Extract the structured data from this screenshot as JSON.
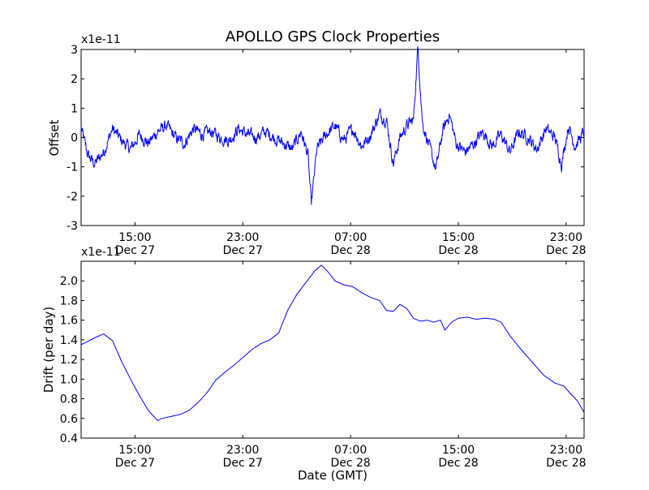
{
  "title": "APOLLO GPS Clock Properties",
  "colors": {
    "series": "#0000ff",
    "axes": "#000000",
    "background": "#ffffff"
  },
  "x_ticks": [
    {
      "value": "2012-12-27 15:00",
      "time": "15:00",
      "date": "Dec 27"
    },
    {
      "value": "2012-12-27 23:00",
      "time": "23:00",
      "date": "Dec 27"
    },
    {
      "value": "2012-12-28 07:00",
      "time": "07:00",
      "date": "Dec 28"
    },
    {
      "value": "2012-12-28 15:00",
      "time": "15:00",
      "date": "Dec 28"
    },
    {
      "value": "2012-12-28 23:00",
      "time": "23:00",
      "date": "Dec 28"
    }
  ],
  "chart_data": [
    {
      "type": "line",
      "ylabel": "Offset",
      "scale_label": "x1e-11",
      "ylim": [
        -3,
        3
      ],
      "yticks": [
        -3,
        -2,
        -1,
        0,
        1,
        2,
        3
      ],
      "xlim": [
        "2012-12-27 11:00",
        "2012-12-29 00:20"
      ],
      "grid": false,
      "series": [
        {
          "points": [
            [
              "2012-12-27 11:00",
              0.3
            ],
            [
              "2012-12-27 11:30",
              -0.6
            ],
            [
              "2012-12-27 12:00",
              -0.9
            ],
            [
              "2012-12-27 12:40",
              -0.5
            ],
            [
              "2012-12-27 13:20",
              0.3
            ],
            [
              "2012-12-27 14:00",
              -0.1
            ],
            [
              "2012-12-27 14:40",
              -0.4
            ],
            [
              "2012-12-27 15:20",
              0.1
            ],
            [
              "2012-12-27 16:00",
              -0.2
            ],
            [
              "2012-12-27 16:40",
              0.2
            ],
            [
              "2012-12-27 17:20",
              0.4
            ],
            [
              "2012-12-27 18:00",
              0.0
            ],
            [
              "2012-12-27 18:40",
              -0.2
            ],
            [
              "2012-12-27 19:20",
              0.3
            ],
            [
              "2012-12-27 20:00",
              0.1
            ],
            [
              "2012-12-27 20:40",
              0.2
            ],
            [
              "2012-12-27 21:20",
              0.0
            ],
            [
              "2012-12-27 22:00",
              -0.1
            ],
            [
              "2012-12-27 22:40",
              0.3
            ],
            [
              "2012-12-27 23:20",
              0.1
            ],
            [
              "2012-12-28 00:00",
              0.0
            ],
            [
              "2012-12-28 00:40",
              0.2
            ],
            [
              "2012-12-28 01:20",
              0.0
            ],
            [
              "2012-12-28 02:00",
              -0.2
            ],
            [
              "2012-12-28 02:40",
              -0.4
            ],
            [
              "2012-12-28 03:20",
              0.2
            ],
            [
              "2012-12-28 03:50",
              -0.6
            ],
            [
              "2012-12-28 04:05",
              -2.3
            ],
            [
              "2012-12-28 04:30",
              -0.4
            ],
            [
              "2012-12-28 05:10",
              0.1
            ],
            [
              "2012-12-28 05:50",
              0.4
            ],
            [
              "2012-12-28 06:30",
              -0.1
            ],
            [
              "2012-12-28 07:10",
              0.3
            ],
            [
              "2012-12-28 07:50",
              -0.3
            ],
            [
              "2012-12-28 08:30",
              0.1
            ],
            [
              "2012-12-28 09:10",
              0.8
            ],
            [
              "2012-12-28 09:40",
              0.6
            ],
            [
              "2012-12-28 10:10",
              -0.9
            ],
            [
              "2012-12-28 10:40",
              0.0
            ],
            [
              "2012-12-28 11:10",
              0.4
            ],
            [
              "2012-12-28 11:40",
              0.6
            ],
            [
              "2012-12-28 12:00",
              3.1
            ],
            [
              "2012-12-28 12:20",
              0.5
            ],
            [
              "2012-12-28 12:50",
              -0.3
            ],
            [
              "2012-12-28 13:20",
              -1.1
            ],
            [
              "2012-12-28 13:50",
              0.2
            ],
            [
              "2012-12-28 14:20",
              0.8
            ],
            [
              "2012-12-28 14:50",
              -0.2
            ],
            [
              "2012-12-28 15:30",
              -0.5
            ],
            [
              "2012-12-28 16:10",
              -0.2
            ],
            [
              "2012-12-28 16:50",
              0.2
            ],
            [
              "2012-12-28 17:30",
              -0.3
            ],
            [
              "2012-12-28 18:10",
              0.1
            ],
            [
              "2012-12-28 18:50",
              -0.5
            ],
            [
              "2012-12-28 19:30",
              0.2
            ],
            [
              "2012-12-28 20:10",
              0.0
            ],
            [
              "2012-12-28 20:50",
              -0.4
            ],
            [
              "2012-12-28 21:30",
              0.3
            ],
            [
              "2012-12-28 22:10",
              0.0
            ],
            [
              "2012-12-28 22:40",
              -0.9
            ],
            [
              "2012-12-28 23:10",
              0.4
            ],
            [
              "2012-12-28 23:40",
              -0.3
            ],
            [
              "2012-12-29 00:20",
              0.2
            ]
          ]
        }
      ]
    },
    {
      "type": "line",
      "ylabel": "Drift (per day)",
      "xlabel": "Date (GMT)",
      "scale_label": "x1e-11",
      "ylim": [
        0.4,
        2.2
      ],
      "yticks": [
        0.4,
        0.6,
        0.8,
        1.0,
        1.2,
        1.4,
        1.6,
        1.8,
        2.0
      ],
      "xlim": [
        "2012-12-27 11:00",
        "2012-12-29 00:20"
      ],
      "grid": false,
      "series": [
        {
          "points": [
            [
              "2012-12-27 11:00",
              1.35
            ],
            [
              "2012-12-27 12:00",
              1.42
            ],
            [
              "2012-12-27 12:40",
              1.46
            ],
            [
              "2012-12-27 13:20",
              1.39
            ],
            [
              "2012-12-27 14:00",
              1.18
            ],
            [
              "2012-12-27 14:40",
              1.0
            ],
            [
              "2012-12-27 15:20",
              0.83
            ],
            [
              "2012-12-27 16:00",
              0.68
            ],
            [
              "2012-12-27 16:40",
              0.58
            ],
            [
              "2012-12-27 17:00",
              0.6
            ],
            [
              "2012-12-27 17:40",
              0.62
            ],
            [
              "2012-12-27 18:20",
              0.64
            ],
            [
              "2012-12-27 19:00",
              0.68
            ],
            [
              "2012-12-27 19:40",
              0.76
            ],
            [
              "2012-12-27 20:20",
              0.86
            ],
            [
              "2012-12-27 21:00",
              0.99
            ],
            [
              "2012-12-27 21:40",
              1.07
            ],
            [
              "2012-12-27 22:20",
              1.14
            ],
            [
              "2012-12-27 23:00",
              1.22
            ],
            [
              "2012-12-27 23:40",
              1.3
            ],
            [
              "2012-12-28 00:20",
              1.36
            ],
            [
              "2012-12-28 01:00",
              1.4
            ],
            [
              "2012-12-28 01:40",
              1.47
            ],
            [
              "2012-12-28 02:20",
              1.7
            ],
            [
              "2012-12-28 03:00",
              1.86
            ],
            [
              "2012-12-28 03:40",
              1.98
            ],
            [
              "2012-12-28 04:20",
              2.1
            ],
            [
              "2012-12-28 04:50",
              2.16
            ],
            [
              "2012-12-28 05:20",
              2.09
            ],
            [
              "2012-12-28 05:50",
              2.0
            ],
            [
              "2012-12-28 06:30",
              1.96
            ],
            [
              "2012-12-28 07:10",
              1.94
            ],
            [
              "2012-12-28 07:50",
              1.88
            ],
            [
              "2012-12-28 08:30",
              1.83
            ],
            [
              "2012-12-28 09:10",
              1.8
            ],
            [
              "2012-12-28 09:40",
              1.7
            ],
            [
              "2012-12-28 10:10",
              1.69
            ],
            [
              "2012-12-28 10:40",
              1.76
            ],
            [
              "2012-12-28 11:10",
              1.72
            ],
            [
              "2012-12-28 11:40",
              1.62
            ],
            [
              "2012-12-28 12:10",
              1.59
            ],
            [
              "2012-12-28 12:40",
              1.6
            ],
            [
              "2012-12-28 13:10",
              1.58
            ],
            [
              "2012-12-28 13:40",
              1.6
            ],
            [
              "2012-12-28 14:00",
              1.5
            ],
            [
              "2012-12-28 14:30",
              1.58
            ],
            [
              "2012-12-28 15:00",
              1.62
            ],
            [
              "2012-12-28 15:40",
              1.63
            ],
            [
              "2012-12-28 16:20",
              1.61
            ],
            [
              "2012-12-28 17:00",
              1.62
            ],
            [
              "2012-12-28 17:40",
              1.61
            ],
            [
              "2012-12-28 18:10",
              1.58
            ],
            [
              "2012-12-28 18:50",
              1.44
            ],
            [
              "2012-12-28 19:40",
              1.3
            ],
            [
              "2012-12-28 20:30",
              1.17
            ],
            [
              "2012-12-28 21:20",
              1.04
            ],
            [
              "2012-12-28 22:10",
              0.96
            ],
            [
              "2012-12-28 22:50",
              0.93
            ],
            [
              "2012-12-28 23:20",
              0.85
            ],
            [
              "2012-12-28 23:50",
              0.78
            ],
            [
              "2012-12-29 00:20",
              0.66
            ]
          ]
        }
      ]
    }
  ]
}
